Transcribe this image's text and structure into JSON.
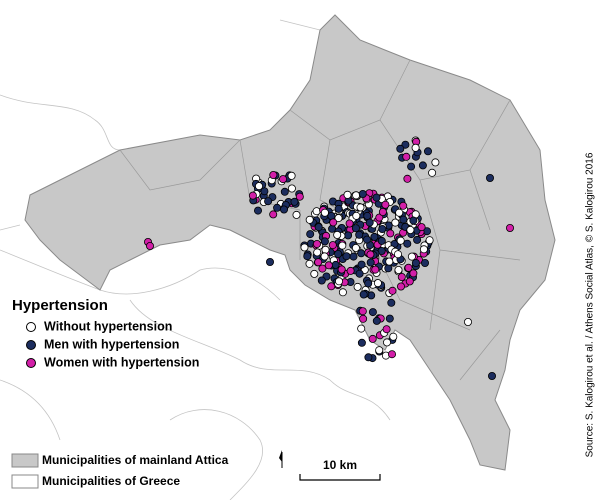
{
  "legend": {
    "title": "Hypertension",
    "items": [
      {
        "label": "Without hypertension",
        "color": "#ffffff"
      },
      {
        "label": "Men with hypertension",
        "color": "#1c2d5e"
      },
      {
        "label": "Women with hypertension",
        "color": "#d21fa8"
      }
    ]
  },
  "scale_bar": {
    "label": "10 km"
  },
  "source": "Source: S. Kalogirou et al. / Athens Social Atlas, © S. Kalogirou 2016",
  "base_legend": {
    "items": [
      {
        "label": "Municipalities of mainland Attica",
        "color": "#c8c8c8"
      },
      {
        "label": "Municipalities of Greece",
        "color": "#ffffff"
      }
    ]
  }
}
